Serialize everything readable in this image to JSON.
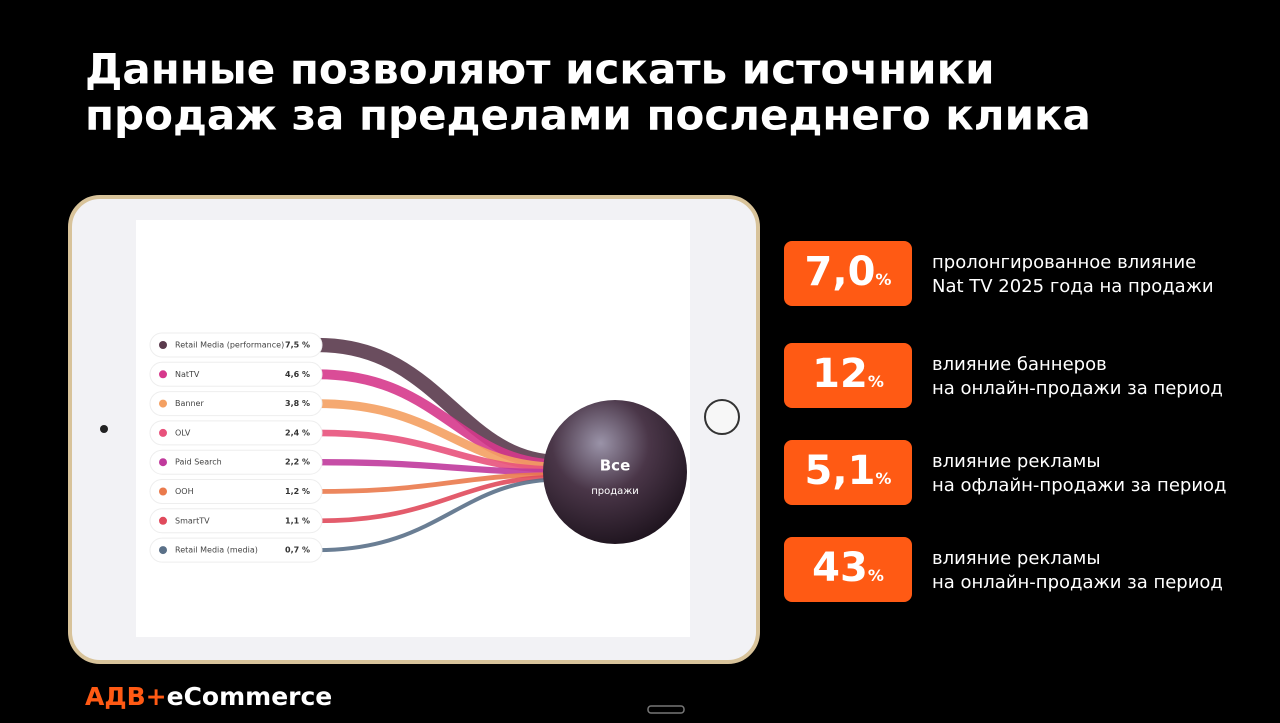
{
  "title": [
    "Данные позволяют искать источники",
    "продаж за пределами последнего клика"
  ],
  "chart_data": {
    "type": "flow",
    "categories": [
      "Retail Media (performance)",
      "NatTV",
      "Banner",
      "OLV",
      "Paid Search",
      "OOH",
      "SmartTV",
      "Retail Media (media)"
    ],
    "values": [
      7.5,
      4.6,
      3.8,
      2.4,
      2.2,
      1.2,
      1.1,
      0.7
    ],
    "value_labels": [
      "7,5 %",
      "4,6 %",
      "3,8 %",
      "2,4 %",
      "2,2 %",
      "1,2 %",
      "1,1 %",
      "0,7 %"
    ],
    "colors": [
      "#5a3a4c",
      "#d6398c",
      "#f4a062",
      "#e8527c",
      "#c03a9c",
      "#ea7a4c",
      "#e04a5c",
      "#5a7088"
    ],
    "target": [
      "Все",
      "продажи"
    ]
  },
  "stats": [
    {
      "value": "7,0",
      "unit": "%",
      "text": [
        "пролонгированное влияние",
        "Nat TV 2025 года на продажи"
      ]
    },
    {
      "value": "12",
      "unit": "%",
      "text": [
        "влияние баннеров",
        "на онлайн-продажи за период"
      ]
    },
    {
      "value": "5,1",
      "unit": "%",
      "text": [
        "влияние рекламы",
        "на офлайн-продажи за период"
      ]
    },
    {
      "value": "43",
      "unit": "%",
      "text": [
        "влияние рекламы",
        "на онлайн-продажи за период"
      ]
    }
  ],
  "logo": [
    "АДВ+",
    "eCommerce"
  ]
}
